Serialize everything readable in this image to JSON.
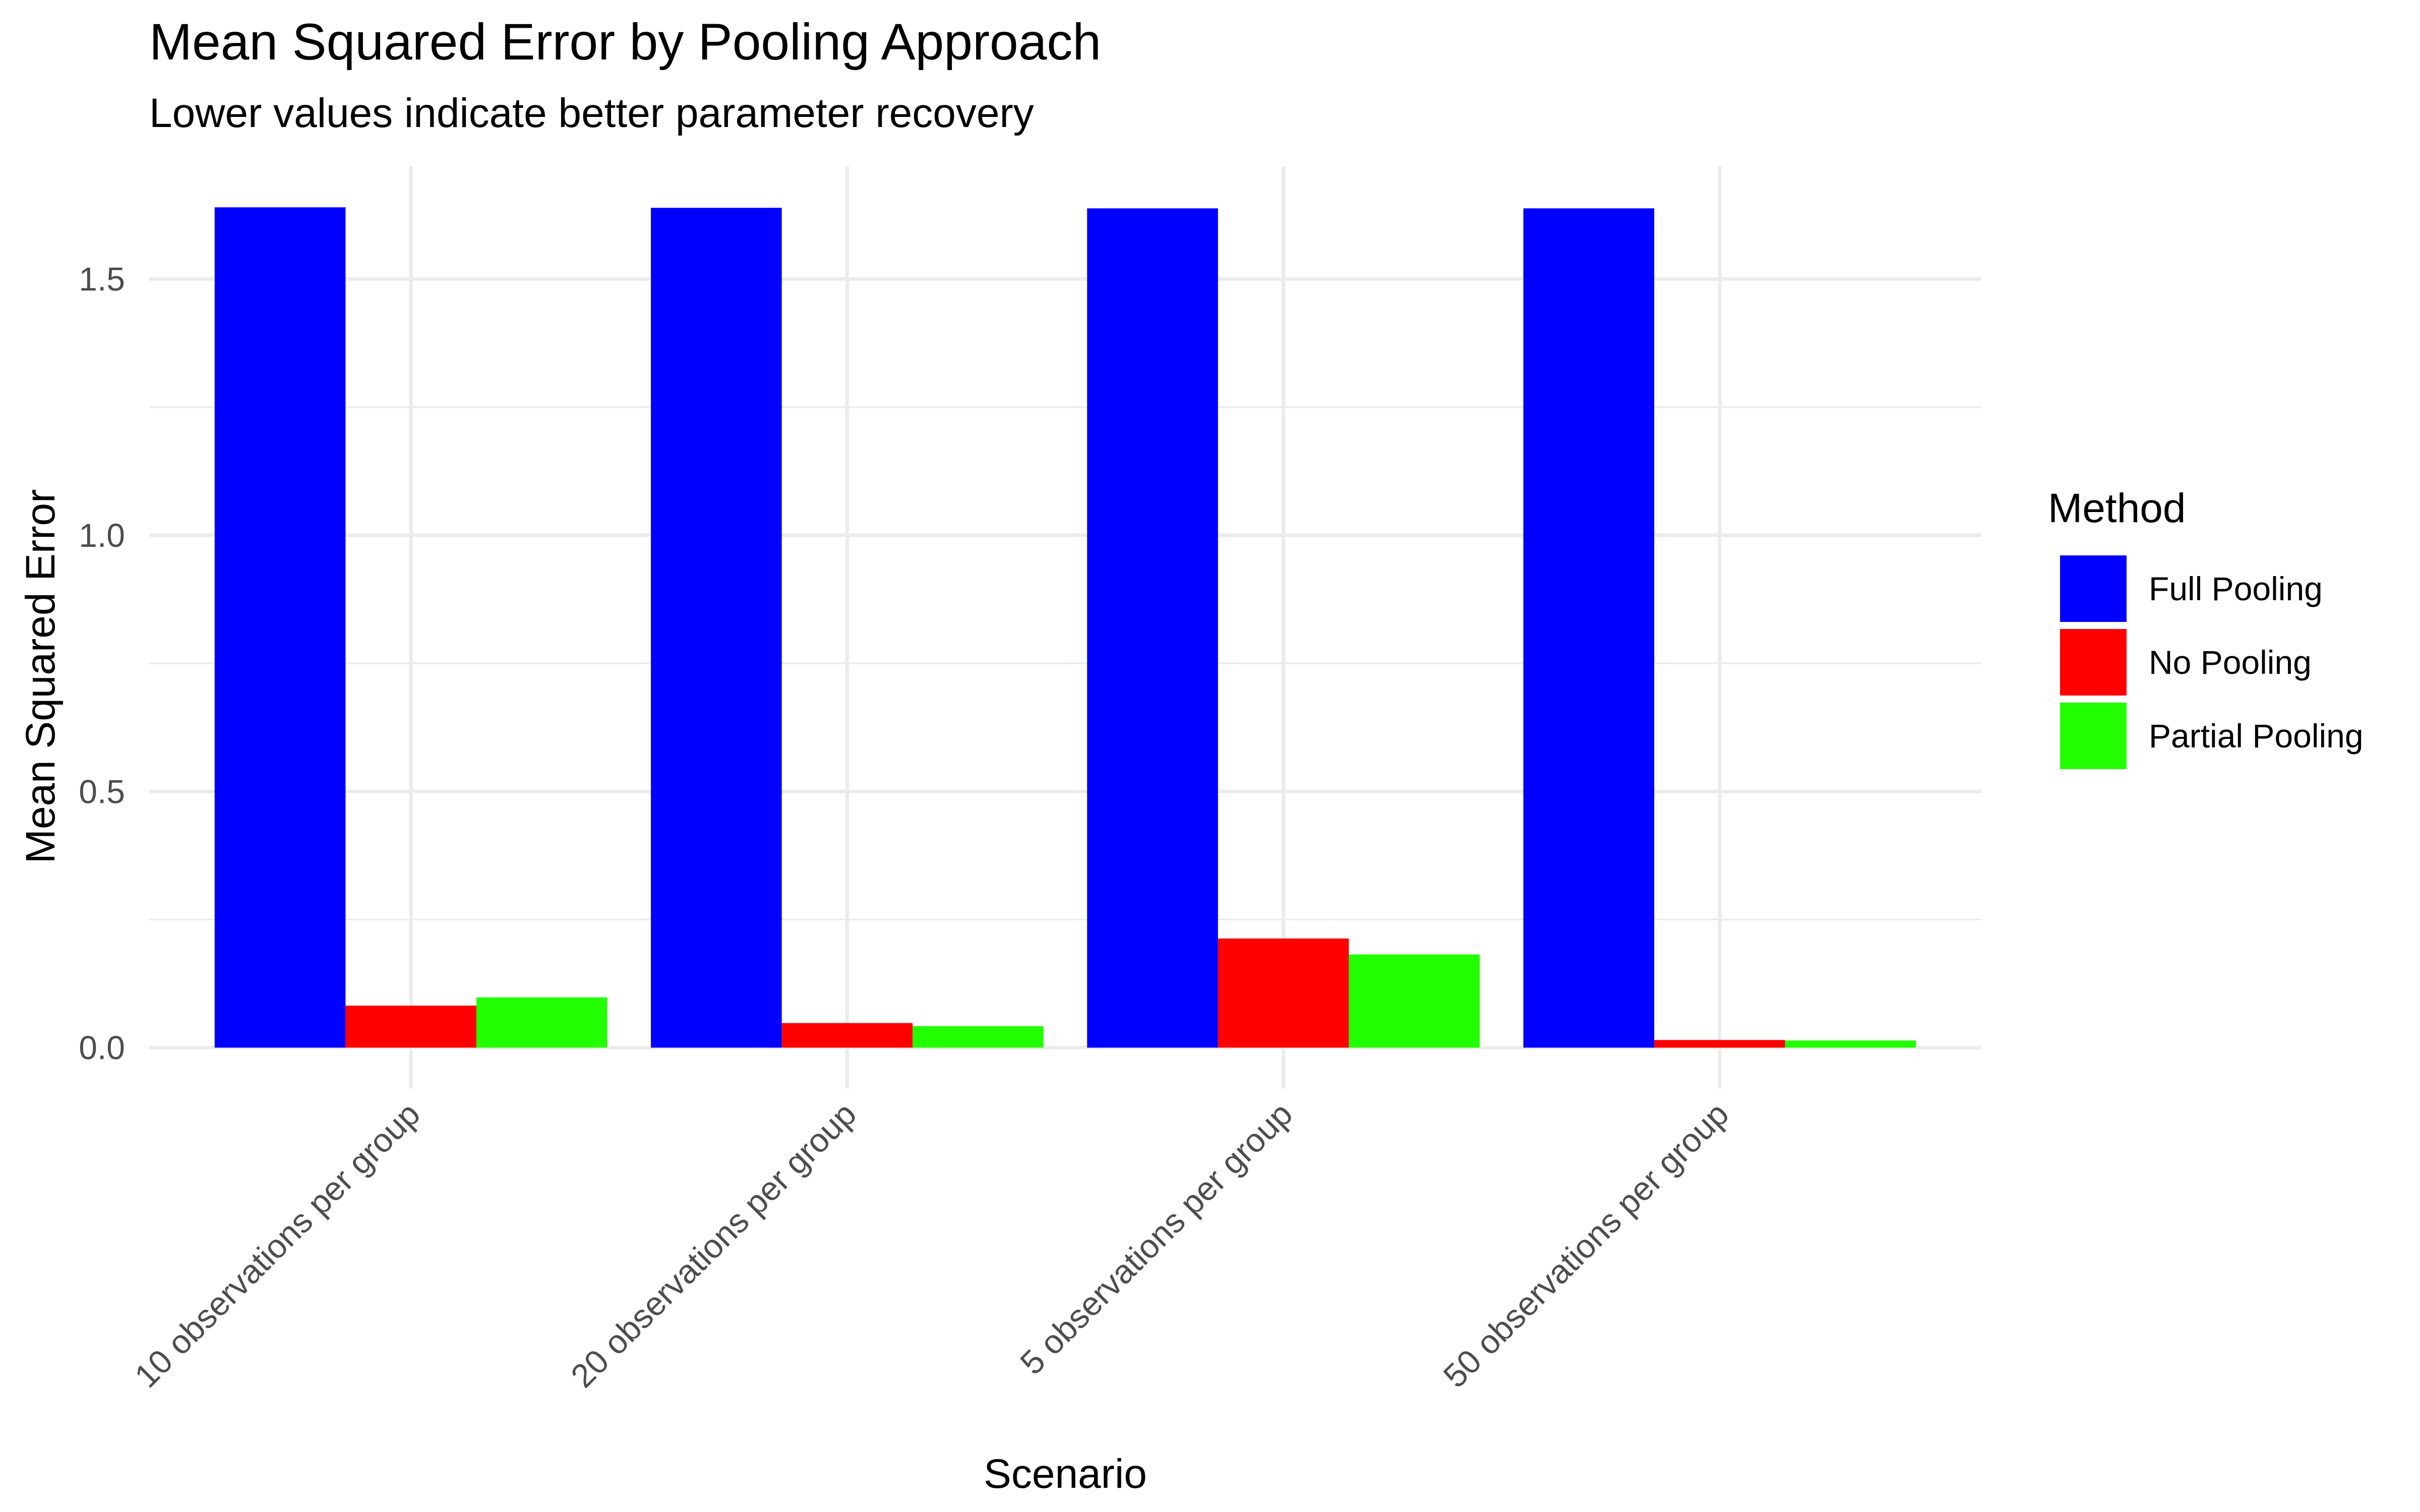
{
  "chart_data": {
    "type": "bar",
    "title": "Mean Squared Error by Pooling Approach",
    "subtitle": "Lower values indicate better parameter recovery",
    "xlabel": "Scenario",
    "ylabel": "Mean Squared Error",
    "categories": [
      "10 observations per group",
      "20 observations per group",
      "5 observations per group",
      "50 observations per group"
    ],
    "series": [
      {
        "name": "Full Pooling",
        "color": "#0000FF",
        "values": [
          1.64,
          1.639,
          1.638,
          1.638
        ]
      },
      {
        "name": "No Pooling",
        "color": "#FF0000",
        "values": [
          0.082,
          0.048,
          0.213,
          0.015
        ]
      },
      {
        "name": "Partial Pooling",
        "color": "#22FF00",
        "values": [
          0.098,
          0.042,
          0.182,
          0.014
        ]
      }
    ],
    "ylim": [
      -0.08,
      1.72
    ],
    "yticks": [
      0.0,
      0.5,
      1.0,
      1.5
    ],
    "ytick_labels": [
      "0.0",
      "0.5",
      "1.0",
      "1.5"
    ],
    "legend": {
      "title": "Method",
      "position": "right"
    },
    "grid": true
  }
}
